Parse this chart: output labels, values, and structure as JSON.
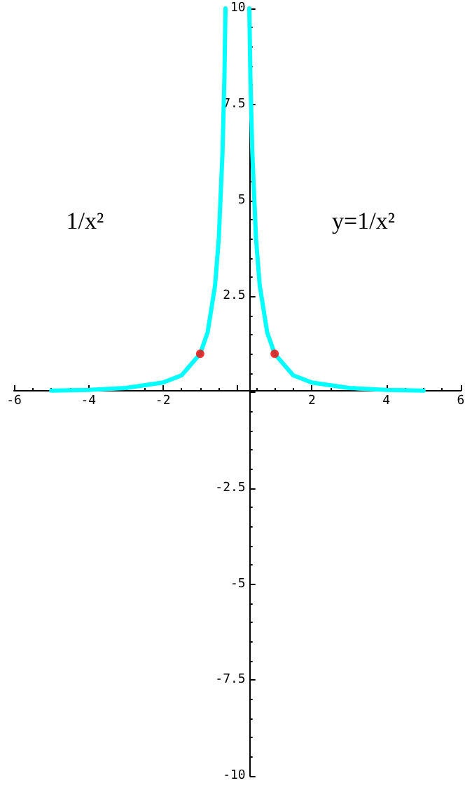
{
  "chart_data": {
    "type": "line",
    "series": [
      {
        "color": "#00ffff",
        "x": [
          -5,
          -4,
          -3,
          -2,
          -1.5,
          -1,
          -0.8,
          -0.6,
          -0.5,
          -0.4,
          -0.35,
          -0.32
        ],
        "values": [
          0.04,
          0.06,
          0.11,
          0.25,
          0.44,
          1,
          1.56,
          2.78,
          4,
          6.25,
          8.16,
          10
        ]
      },
      {
        "color": "#00ffff",
        "x": [
          0.32,
          0.35,
          0.4,
          0.5,
          0.6,
          0.8,
          1,
          1.5,
          2,
          3,
          4,
          5
        ],
        "values": [
          10,
          8.16,
          6.25,
          4,
          2.78,
          1.56,
          1,
          0.44,
          0.25,
          0.11,
          0.06,
          0.04
        ]
      },
      {
        "type": "scatter",
        "marker": "circle",
        "color": "#ff0000",
        "x": [
          -1,
          1
        ],
        "values": [
          1,
          1
        ]
      }
    ],
    "xlim": [
      -6,
      6
    ],
    "ylim": [
      -10,
      10
    ],
    "xticks": [
      -6,
      -4,
      -2,
      {
        "value": 0,
        "label": null
      },
      2,
      4,
      6
    ],
    "yticks": [
      -10,
      -7.5,
      -5,
      -2.5,
      {
        "value": 0,
        "label": null
      },
      2.5,
      5,
      7.5,
      10
    ],
    "annotations": [
      "1/x²",
      "y=1/x²"
    ],
    "marker": "none",
    "line_style": "solid"
  }
}
